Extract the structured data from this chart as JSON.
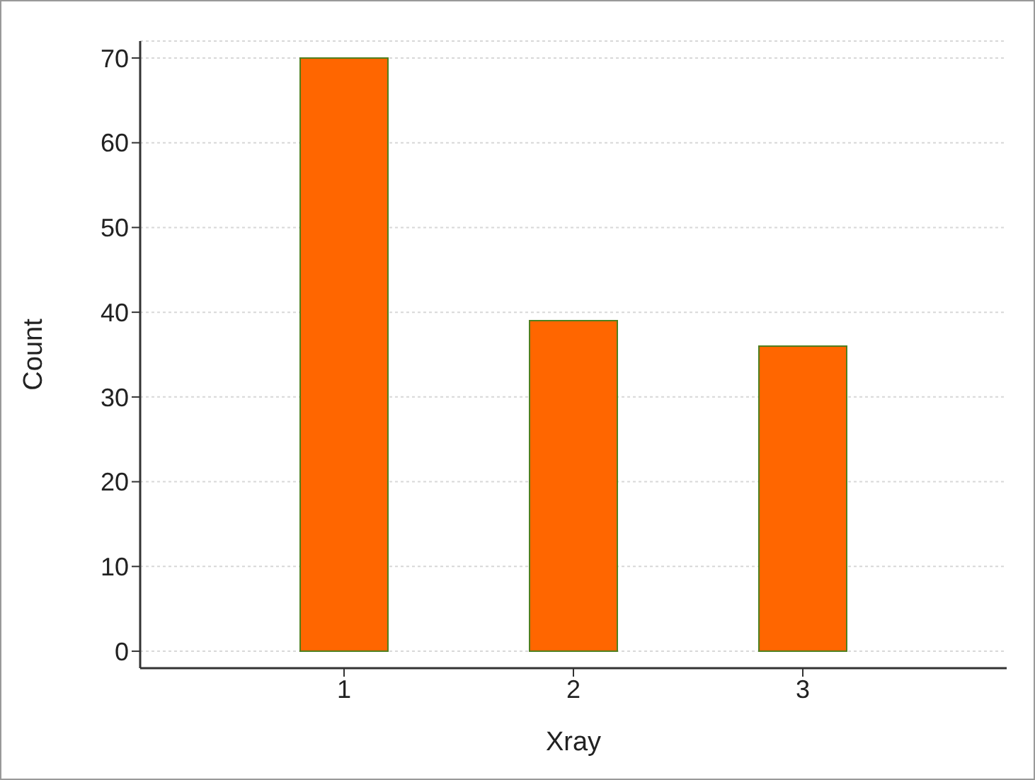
{
  "chart_data": {
    "type": "bar",
    "xlabel": "Xray",
    "ylabel": "Count",
    "categories": [
      "1",
      "2",
      "3"
    ],
    "values": [
      70,
      39,
      36
    ],
    "color": "#ff6600",
    "ylim": [
      -2,
      72
    ],
    "yticks": [
      0,
      10,
      20,
      30,
      40,
      50,
      60,
      70
    ],
    "grid": "y"
  }
}
